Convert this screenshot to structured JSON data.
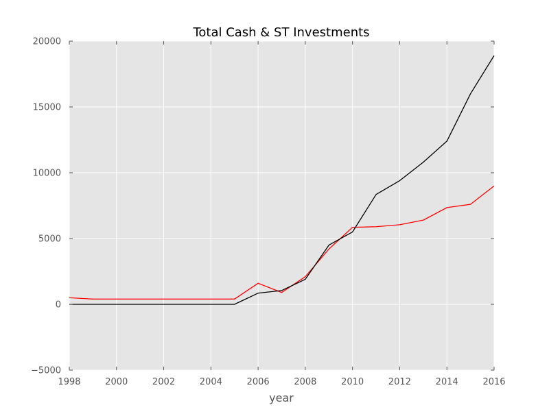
{
  "chart_data": {
    "type": "line",
    "title": "Total Cash & ST Investments",
    "xlabel": "year",
    "ylabel": "",
    "xlim": [
      1998,
      2016
    ],
    "ylim": [
      -5000,
      20000
    ],
    "xticks": [
      1998,
      2000,
      2002,
      2004,
      2006,
      2008,
      2010,
      2012,
      2014,
      2016
    ],
    "yticks": [
      -5000,
      0,
      5000,
      10000,
      15000,
      20000
    ],
    "grid": true,
    "legend": "none",
    "colors": {
      "background": "#e5e5e5",
      "grid": "#ffffff",
      "series_red": "#ff0000",
      "series_black": "#000000"
    },
    "x": [
      1998,
      1999,
      2000,
      2001,
      2002,
      2003,
      2004,
      2005,
      2006,
      2007,
      2008,
      2009,
      2010,
      2011,
      2012,
      2013,
      2014,
      2015,
      2016
    ],
    "series": [
      {
        "color": "#ff0000",
        "values": [
          500,
          400,
          400,
          400,
          400,
          400,
          400,
          400,
          1600,
          900,
          2100,
          4200,
          5850,
          5900,
          6050,
          6400,
          7350,
          7600,
          9000
        ]
      },
      {
        "color": "#000000",
        "values": [
          0,
          0,
          0,
          0,
          0,
          0,
          0,
          0,
          850,
          1050,
          1900,
          4500,
          5500,
          8350,
          9400,
          10800,
          12400,
          16000,
          18900
        ]
      }
    ]
  }
}
